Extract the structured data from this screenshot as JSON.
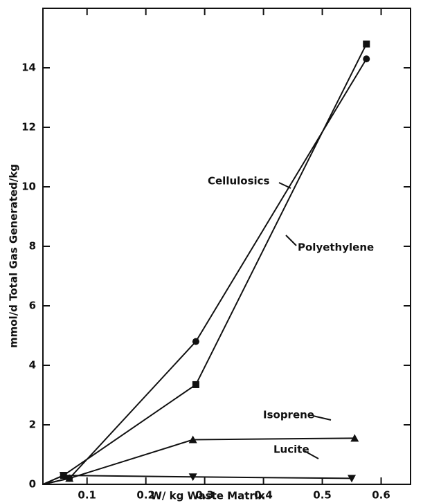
{
  "chart_data": {
    "type": "line",
    "xlabel": "W/ kg Waste Matrix",
    "ylabel": "mmol/d Total Gas Generated/kg",
    "xlim": [
      0.025,
      0.65
    ],
    "ylim": [
      0,
      16
    ],
    "xticks": [
      0.1,
      0.2,
      0.3,
      0.4,
      0.5,
      0.6
    ],
    "yticks": [
      0,
      2,
      4,
      6,
      8,
      10,
      12,
      14
    ],
    "series": [
      {
        "name": "Cellulosics",
        "color": "#111111",
        "marker": "circle",
        "x": [
          0.025,
          0.07,
          0.285,
          0.575
        ],
        "values": [
          0,
          0.2,
          4.8,
          14.3
        ]
      },
      {
        "name": "Polyethylene",
        "color": "#111111",
        "marker": "square",
        "x": [
          0.025,
          0.06,
          0.285,
          0.575
        ],
        "values": [
          0,
          0.3,
          3.35,
          14.8
        ]
      },
      {
        "name": "Isoprene",
        "color": "#111111",
        "marker": "triangle-up",
        "x": [
          0.025,
          0.07,
          0.28,
          0.555
        ],
        "values": [
          0,
          0.2,
          1.5,
          1.55
        ]
      },
      {
        "name": "Lucite",
        "color": "#111111",
        "marker": "triangle-down",
        "x": [
          0.025,
          0.06,
          0.28,
          0.55
        ],
        "values": [
          0,
          0.3,
          0.25,
          0.2
        ]
      }
    ]
  }
}
